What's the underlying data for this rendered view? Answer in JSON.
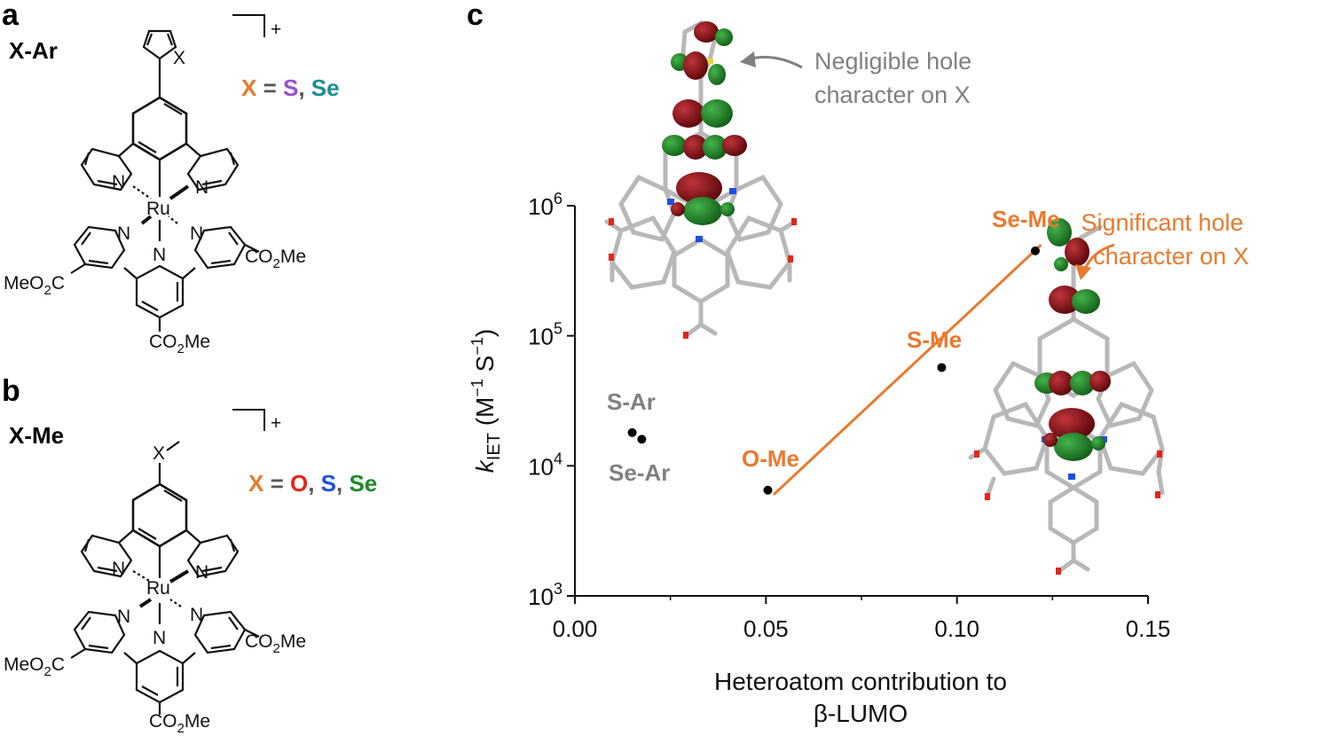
{
  "panels": {
    "a": {
      "letter": "a",
      "name": "X-Ar",
      "charge": "+",
      "atom_x": "X",
      "x_def": {
        "x": "X",
        "eq": " = ",
        "sep": ", ",
        "el1": "S",
        "el2": "Se"
      },
      "labels": {
        "n": "N",
        "ru": "Ru",
        "co2me_prefix": "CO",
        "co2me_suffix": "Me",
        "meo2c_prefix": "MeO",
        "meo2c_suffix": "C",
        "sub2": "2"
      }
    },
    "b": {
      "letter": "b",
      "name": "X-Me",
      "charge": "+",
      "atom_x": "X",
      "x_def": {
        "x": "X",
        "eq": " = ",
        "sep": ", ",
        "el1": "O",
        "el2": "S",
        "el3": "Se"
      },
      "labels": {
        "n": "N",
        "ru": "Ru",
        "co2me_prefix": "CO",
        "co2me_suffix": "Me",
        "meo2c_prefix": "MeO",
        "meo2c_suffix": "C",
        "sub2": "2"
      }
    },
    "c": {
      "letter": "c"
    }
  },
  "colors": {
    "orange": "#E87A2E",
    "purple": "#9B4FD0",
    "teal": "#1A8F8F",
    "red": "#E3261B",
    "blue": "#1E4FE0",
    "green": "#1F8B2A",
    "gray": "#808080",
    "lobe_red": "#7A0E12",
    "lobe_green": "#1E7A22",
    "stick": "#B8B8B8"
  },
  "chart_data": {
    "type": "scatter",
    "title": "",
    "xlabel": "Heteroatom contribution to β-LUMO",
    "xlabel_line1": "Heteroatom contribution to",
    "xlabel_line2": "β-LUMO",
    "ylabel": {
      "k": "k",
      "sub": "IET",
      "open": " (M",
      "sup1": "−1",
      "mid": " S",
      "sup2": "−1",
      "close": ")"
    },
    "xlim": [
      0,
      0.15
    ],
    "ylim": [
      1000,
      1000000
    ],
    "y_scale": "log",
    "x_ticks": [
      0.0,
      0.05,
      0.1,
      0.15
    ],
    "x_tick_labels": [
      "0.00",
      "0.05",
      "0.10",
      "0.15"
    ],
    "y_ticks": [
      1000,
      10000,
      100000,
      1000000
    ],
    "y_tick_labels": [
      {
        "base": "10",
        "exp": "3"
      },
      {
        "base": "10",
        "exp": "4"
      },
      {
        "base": "10",
        "exp": "5"
      },
      {
        "base": "10",
        "exp": "6"
      }
    ],
    "points": [
      {
        "label": "S-Ar",
        "x": 0.015,
        "y": 18000,
        "group": "Ar"
      },
      {
        "label": "Se-Ar",
        "x": 0.0175,
        "y": 16000,
        "group": "Ar"
      },
      {
        "label": "O-Me",
        "x": 0.0505,
        "y": 6500,
        "group": "Me"
      },
      {
        "label": "S-Me",
        "x": 0.096,
        "y": 57000,
        "group": "Me"
      },
      {
        "label": "Se-Me",
        "x": 0.1205,
        "y": 450000,
        "group": "Me"
      }
    ],
    "fit_line": {
      "x": [
        0.052,
        0.122
      ],
      "y": [
        6000,
        500000
      ]
    },
    "annotations": [
      {
        "line1": "Negligible hole",
        "line2": "character on X"
      },
      {
        "line1": "Significant hole",
        "line2": "character on X"
      }
    ]
  }
}
